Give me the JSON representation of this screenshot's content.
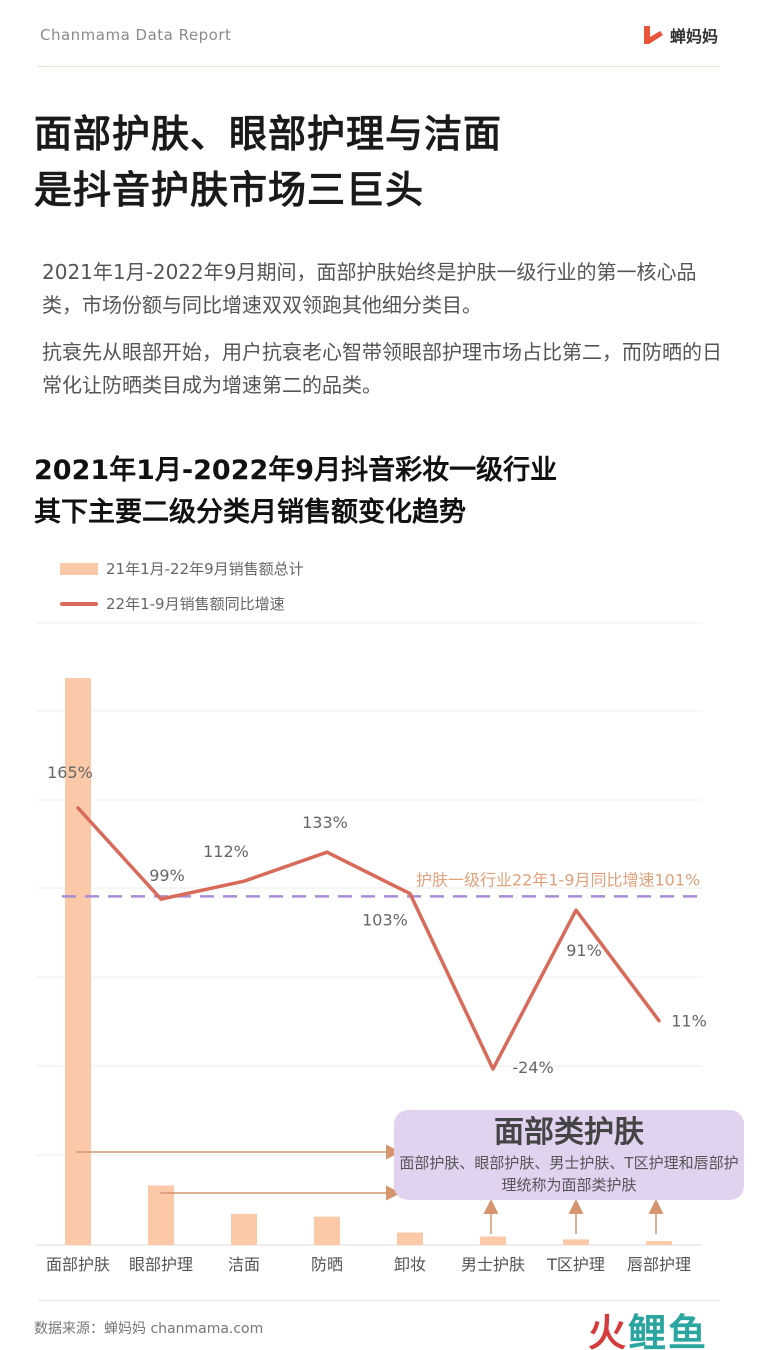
{
  "header": {
    "brand": "Chanmama Data Report",
    "logo_text": "蝉妈妈"
  },
  "title": {
    "line1": "面部护肤、眼部护理与洁面",
    "line2": "是抖音护肤市场三巨头"
  },
  "description": {
    "p1": "2021年1月-2022年9月期间，面部护肤始终是护肤一级行业的第一核心品类，市场份额与同比增速双双领跑其他细分类目。",
    "p2": "抗衰先从眼部开始，用户抗衰老心智带领眼部护理市场占比第二，而防晒的日常化让防晒类目成为增速第二的品类。"
  },
  "chart_title": {
    "line1": "2021年1月-2022年9月抖音彩妆一级行业",
    "line2": "其下主要二级分类月销售额变化趋势"
  },
  "chart_data": {
    "type": "bar",
    "categories": [
      "面部护肤",
      "眼部护理",
      "洁面",
      "防晒",
      "卸妆",
      "男士护肤",
      "T区护理",
      "唇部护理"
    ],
    "series": [
      {
        "name": "21年1月-22年9月销售额总计",
        "type": "bar",
        "values": [
          100,
          10.5,
          5.5,
          5.0,
          2.2,
          1.5,
          1.0,
          0.7
        ],
        "color": "#fbc9a7"
      },
      {
        "name": "22年1-9月销售额同比增速",
        "type": "line",
        "values": [
          165,
          99,
          112,
          133,
          103,
          -24,
          91,
          11
        ],
        "labels": [
          "165%",
          "99%",
          "112%",
          "133%",
          "103%",
          "-24%",
          "91%",
          "11%"
        ],
        "color": "#d86a5a"
      }
    ],
    "reference_line": {
      "value": 101,
      "label": "护肤一级行业22年1-9月同比增速101%",
      "color": "#a98cd6",
      "label_color": "#e0a07a"
    },
    "grid": true,
    "legend": "top-left"
  },
  "callout": {
    "title": "面部类护肤",
    "body": "面部护肤、眼部护肤、男士护肤、T区护理和唇部护理统称为面部类护肤"
  },
  "footer": {
    "source": "数据来源：蝉妈妈 chanmama.com",
    "watermark_a": "火",
    "watermark_b": "鲤鱼"
  }
}
